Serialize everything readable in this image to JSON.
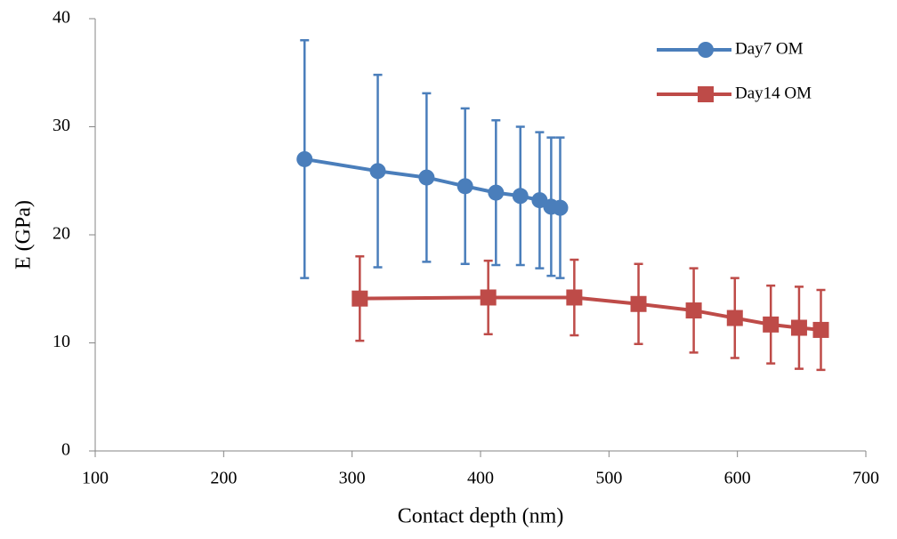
{
  "chart_data": {
    "type": "line",
    "x_label": "Contact depth (nm)",
    "y_label": "E (GPa)",
    "xlim": [
      100,
      700
    ],
    "xticks": [
      100,
      200,
      300,
      400,
      500,
      600,
      700
    ],
    "ylim": [
      0,
      40
    ],
    "yticks": [
      0,
      10,
      20,
      30,
      40
    ],
    "legend": "upper right",
    "series": [
      {
        "name": "Day7 OM",
        "color": "#4a7ebb",
        "marker": "circle",
        "x": [
          263,
          320,
          358,
          388,
          412,
          431,
          446,
          455,
          462
        ],
        "values": [
          27.0,
          25.9,
          25.3,
          24.5,
          23.9,
          23.6,
          23.2,
          22.6,
          22.5
        ],
        "errors": [
          11.0,
          8.9,
          7.8,
          7.2,
          6.7,
          6.4,
          6.3,
          6.4,
          6.5
        ]
      },
      {
        "name": "Day14 OM",
        "color": "#be4b48",
        "marker": "square",
        "x": [
          306,
          406,
          473,
          523,
          566,
          598,
          626,
          648,
          665
        ],
        "values": [
          14.1,
          14.2,
          14.2,
          13.6,
          13.0,
          12.3,
          11.7,
          11.4,
          11.2
        ],
        "errors": [
          3.9,
          3.4,
          3.5,
          3.7,
          3.9,
          3.7,
          3.6,
          3.8,
          3.7
        ]
      }
    ]
  }
}
